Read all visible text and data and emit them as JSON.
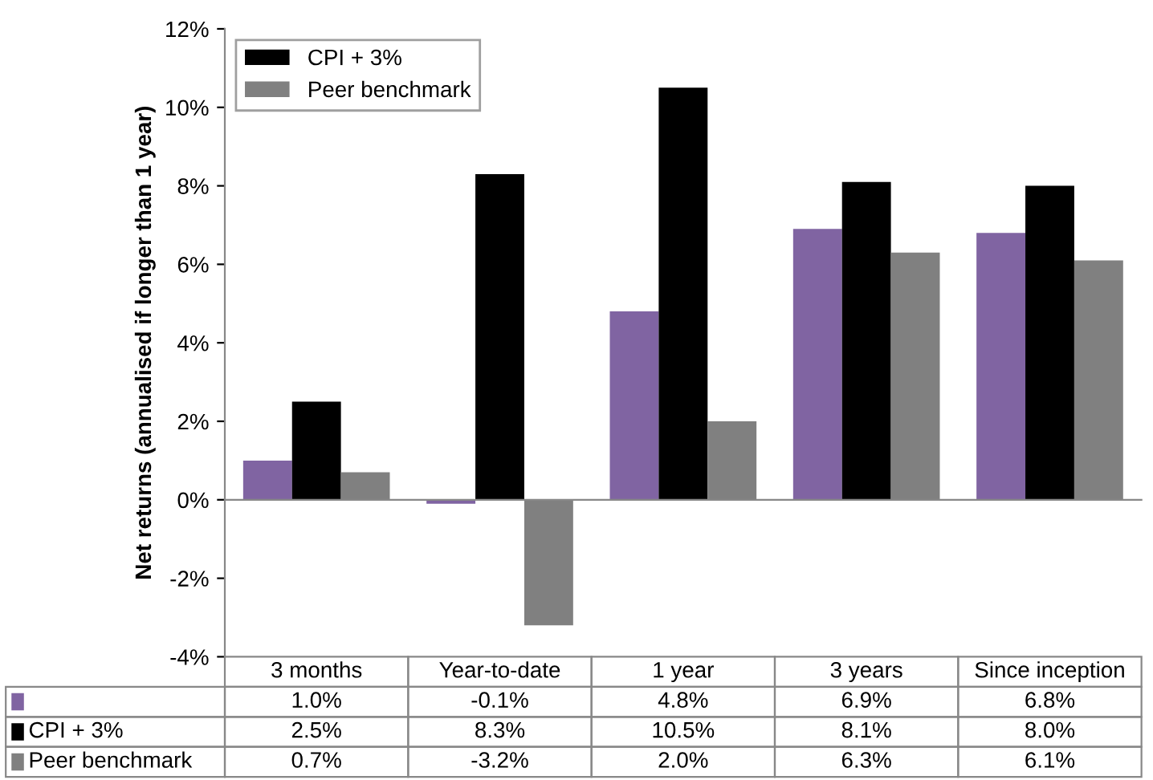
{
  "chart_data": {
    "type": "bar",
    "ylabel": "Net returns (annualised if longer than 1 year)",
    "categories": [
      "3 months",
      "Year-to-date",
      "1 year",
      "3 years",
      "Since inception"
    ],
    "series": [
      {
        "color": "#8064a2",
        "values": [
          1.0,
          -0.1,
          4.8,
          6.9,
          6.8
        ],
        "value_labels": [
          "1.0%",
          "-0.1%",
          "4.8%",
          "6.9%",
          "6.8%"
        ]
      },
      {
        "name": "CPI + 3%",
        "color": "#000000",
        "values": [
          2.5,
          8.3,
          10.5,
          8.1,
          8.0
        ],
        "value_labels": [
          "2.5%",
          "8.3%",
          "10.5%",
          "8.1%",
          "8.0%"
        ]
      },
      {
        "name": "Peer benchmark",
        "color": "#808080",
        "values": [
          0.7,
          -3.2,
          2.0,
          6.3,
          6.1
        ],
        "value_labels": [
          "0.7%",
          "-3.2%",
          "2.0%",
          "6.3%",
          "6.1%"
        ]
      }
    ],
    "ylim": [
      -4,
      12
    ],
    "yticks": [
      {
        "value": -4,
        "label": "-4%"
      },
      {
        "value": -2,
        "label": "-2%"
      },
      {
        "value": 0,
        "label": "0%"
      },
      {
        "value": 2,
        "label": "2%"
      },
      {
        "value": 4,
        "label": "4%"
      },
      {
        "value": 6,
        "label": "6%"
      },
      {
        "value": 8,
        "label": "8%"
      },
      {
        "value": 10,
        "label": "10%"
      },
      {
        "value": 12,
        "label": "12%"
      }
    ],
    "legend": "top left"
  }
}
